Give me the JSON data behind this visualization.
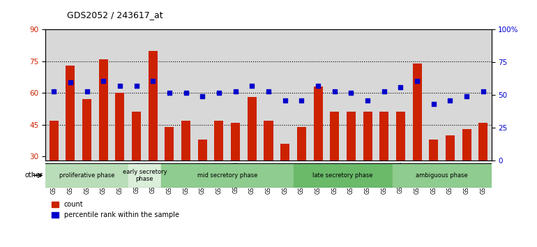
{
  "title": "GDS2052 / 243617_at",
  "samples": [
    "GSM109814",
    "GSM109815",
    "GSM109816",
    "GSM109817",
    "GSM109820",
    "GSM109821",
    "GSM109822",
    "GSM109824",
    "GSM109825",
    "GSM109826",
    "GSM109827",
    "GSM109828",
    "GSM109829",
    "GSM109830",
    "GSM109831",
    "GSM109834",
    "GSM109835",
    "GSM109836",
    "GSM109837",
    "GSM109838",
    "GSM109839",
    "GSM109818",
    "GSM109819",
    "GSM109823",
    "GSM109832",
    "GSM109833",
    "GSM109840"
  ],
  "counts": [
    47,
    73,
    57,
    76,
    60,
    51,
    80,
    44,
    47,
    38,
    47,
    46,
    58,
    47,
    36,
    44,
    63,
    51,
    51,
    51,
    51,
    51,
    74,
    38,
    40,
    43,
    46
  ],
  "percentiles": [
    53,
    60,
    53,
    61,
    57,
    57,
    61,
    52,
    52,
    49,
    52,
    53,
    57,
    53,
    46,
    46,
    57,
    53,
    52,
    46,
    53,
    56,
    61,
    43,
    46,
    49,
    53
  ],
  "phases": [
    {
      "label": "proliferative phase",
      "start": 0,
      "end": 5,
      "color": "#b8ddb8"
    },
    {
      "label": "early secretory\nphase",
      "start": 5,
      "end": 7,
      "color": "#daeeda"
    },
    {
      "label": "mid secretory phase",
      "start": 7,
      "end": 15,
      "color": "#8fcc8f"
    },
    {
      "label": "late secretory phase",
      "start": 15,
      "end": 21,
      "color": "#6aba6a"
    },
    {
      "label": "ambiguous phase",
      "start": 21,
      "end": 27,
      "color": "#8fcc8f"
    }
  ],
  "bar_color": "#cc2200",
  "dot_color": "#0000cc",
  "ylim_left": [
    28,
    90
  ],
  "ylim_right": [
    0,
    100
  ],
  "yticks_left": [
    30,
    45,
    60,
    75,
    90
  ],
  "yticks_right": [
    0,
    25,
    50,
    75,
    100
  ],
  "ylabel_left_color": "#cc2200",
  "ylabel_right_color": "#0000cc",
  "grid_color": "black",
  "xtick_bg_color": "#d8d8d8",
  "plot_bg_color": "white",
  "legend_count": "count",
  "legend_percentile": "percentile rank within the sample",
  "other_label": "other"
}
